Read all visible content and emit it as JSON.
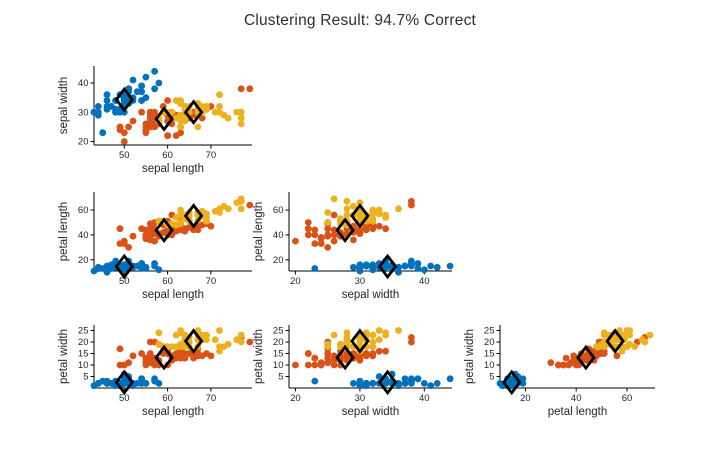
{
  "title": "Clustering Result: 94.7% Correct",
  "colors": {
    "cluster1": "#0072BD",
    "cluster2": "#D95319",
    "cluster3": "#EDB120",
    "centroid_edge": "#000000",
    "axis": "#000000",
    "text": "#262626",
    "background": "#ffffff"
  },
  "chart_data": {
    "type": "scatter",
    "title": "Clustering Result: 94.7% Correct",
    "features": [
      "sepal length",
      "sepal width",
      "petal length",
      "petal width"
    ],
    "legend": "none",
    "grid": false,
    "marker": {
      "point": "filled-circle",
      "centroid": "open-black-diamond"
    },
    "clusters": [
      {
        "name": "cluster-1-blue",
        "color": "#0072BD",
        "points": [
          [
            51,
            35,
            14,
            2
          ],
          [
            49,
            30,
            14,
            2
          ],
          [
            47,
            32,
            13,
            2
          ],
          [
            46,
            31,
            15,
            2
          ],
          [
            50,
            36,
            14,
            2
          ],
          [
            54,
            39,
            17,
            4
          ],
          [
            46,
            34,
            14,
            3
          ],
          [
            50,
            34,
            15,
            2
          ],
          [
            44,
            29,
            14,
            2
          ],
          [
            49,
            31,
            15,
            1
          ],
          [
            54,
            37,
            15,
            2
          ],
          [
            48,
            34,
            16,
            2
          ],
          [
            48,
            30,
            14,
            1
          ],
          [
            43,
            30,
            11,
            1
          ],
          [
            58,
            40,
            12,
            2
          ],
          [
            57,
            44,
            15,
            4
          ],
          [
            54,
            39,
            13,
            4
          ],
          [
            51,
            35,
            14,
            3
          ],
          [
            57,
            38,
            17,
            3
          ],
          [
            51,
            38,
            15,
            3
          ],
          [
            54,
            34,
            17,
            2
          ],
          [
            51,
            37,
            15,
            4
          ],
          [
            46,
            36,
            10,
            2
          ],
          [
            51,
            33,
            17,
            5
          ],
          [
            48,
            34,
            19,
            2
          ],
          [
            50,
            30,
            16,
            2
          ],
          [
            50,
            34,
            16,
            4
          ],
          [
            52,
            35,
            15,
            2
          ],
          [
            52,
            34,
            14,
            2
          ],
          [
            47,
            32,
            16,
            2
          ],
          [
            48,
            31,
            16,
            2
          ],
          [
            54,
            34,
            15,
            4
          ],
          [
            52,
            41,
            15,
            1
          ],
          [
            55,
            42,
            14,
            2
          ],
          [
            49,
            31,
            15,
            2
          ],
          [
            50,
            32,
            12,
            2
          ],
          [
            55,
            35,
            13,
            2
          ],
          [
            49,
            36,
            14,
            1
          ],
          [
            44,
            30,
            13,
            2
          ],
          [
            51,
            34,
            15,
            2
          ],
          [
            50,
            35,
            13,
            3
          ],
          [
            45,
            23,
            13,
            3
          ],
          [
            44,
            32,
            13,
            2
          ],
          [
            50,
            35,
            16,
            6
          ],
          [
            51,
            38,
            19,
            4
          ],
          [
            48,
            30,
            14,
            3
          ],
          [
            51,
            38,
            16,
            2
          ],
          [
            46,
            32,
            14,
            2
          ],
          [
            53,
            37,
            15,
            2
          ],
          [
            50,
            33,
            14,
            2
          ]
        ]
      },
      {
        "name": "cluster-2-orange",
        "color": "#D95319",
        "points": [
          [
            70,
            32,
            47,
            14
          ],
          [
            64,
            32,
            45,
            15
          ],
          [
            69,
            31,
            49,
            15
          ],
          [
            55,
            23,
            40,
            13
          ],
          [
            65,
            28,
            46,
            15
          ],
          [
            57,
            28,
            45,
            13
          ],
          [
            63,
            33,
            47,
            16
          ],
          [
            49,
            24,
            33,
            10
          ],
          [
            66,
            29,
            46,
            13
          ],
          [
            52,
            27,
            39,
            14
          ],
          [
            50,
            20,
            35,
            10
          ],
          [
            59,
            30,
            42,
            15
          ],
          [
            60,
            22,
            40,
            10
          ],
          [
            61,
            29,
            47,
            14
          ],
          [
            56,
            29,
            36,
            13
          ],
          [
            67,
            31,
            44,
            14
          ],
          [
            56,
            30,
            45,
            15
          ],
          [
            58,
            27,
            41,
            10
          ],
          [
            62,
            22,
            45,
            15
          ],
          [
            56,
            25,
            39,
            11
          ],
          [
            59,
            32,
            48,
            18
          ],
          [
            61,
            28,
            40,
            13
          ],
          [
            63,
            25,
            49,
            15
          ],
          [
            61,
            28,
            47,
            12
          ],
          [
            64,
            29,
            43,
            13
          ],
          [
            66,
            30,
            44,
            14
          ],
          [
            68,
            28,
            48,
            14
          ],
          [
            67,
            30,
            50,
            17
          ],
          [
            60,
            29,
            45,
            15
          ],
          [
            57,
            26,
            35,
            10
          ],
          [
            55,
            24,
            38,
            11
          ],
          [
            55,
            24,
            37,
            10
          ],
          [
            58,
            27,
            39,
            12
          ],
          [
            60,
            27,
            51,
            16
          ],
          [
            54,
            30,
            45,
            15
          ],
          [
            60,
            34,
            45,
            16
          ],
          [
            67,
            31,
            47,
            15
          ],
          [
            63,
            23,
            44,
            13
          ],
          [
            56,
            30,
            41,
            13
          ],
          [
            55,
            25,
            40,
            13
          ],
          [
            55,
            26,
            44,
            12
          ],
          [
            61,
            30,
            46,
            14
          ],
          [
            58,
            26,
            40,
            12
          ],
          [
            50,
            23,
            33,
            10
          ],
          [
            56,
            27,
            42,
            13
          ],
          [
            57,
            30,
            42,
            12
          ],
          [
            57,
            29,
            42,
            13
          ],
          [
            62,
            29,
            43,
            13
          ],
          [
            51,
            25,
            30,
            11
          ],
          [
            57,
            28,
            41,
            13
          ],
          [
            49,
            25,
            45,
            17
          ],
          [
            57,
            25,
            50,
            20
          ],
          [
            77,
            38,
            67,
            22
          ],
          [
            60,
            22,
            50,
            15
          ],
          [
            56,
            28,
            49,
            20
          ],
          [
            79,
            38,
            64,
            20
          ],
          [
            63,
            28,
            51,
            15
          ],
          [
            61,
            26,
            56,
            14
          ]
        ]
      },
      {
        "name": "cluster-3-yellow",
        "color": "#EDB120",
        "points": [
          [
            63,
            33,
            60,
            25
          ],
          [
            58,
            27,
            51,
            19
          ],
          [
            71,
            30,
            59,
            21
          ],
          [
            63,
            29,
            56,
            18
          ],
          [
            65,
            30,
            58,
            22
          ],
          [
            76,
            30,
            66,
            21
          ],
          [
            73,
            29,
            63,
            18
          ],
          [
            67,
            25,
            58,
            18
          ],
          [
            72,
            36,
            61,
            25
          ],
          [
            65,
            32,
            51,
            20
          ],
          [
            64,
            27,
            53,
            19
          ],
          [
            68,
            30,
            55,
            21
          ],
          [
            58,
            28,
            51,
            24
          ],
          [
            64,
            32,
            53,
            23
          ],
          [
            65,
            30,
            55,
            18
          ],
          [
            77,
            26,
            69,
            23
          ],
          [
            69,
            32,
            57,
            23
          ],
          [
            77,
            28,
            67,
            20
          ],
          [
            63,
            27,
            49,
            18
          ],
          [
            67,
            33,
            57,
            21
          ],
          [
            72,
            32,
            60,
            18
          ],
          [
            62,
            28,
            48,
            18
          ],
          [
            61,
            30,
            49,
            18
          ],
          [
            64,
            28,
            56,
            21
          ],
          [
            72,
            30,
            58,
            16
          ],
          [
            74,
            28,
            61,
            19
          ],
          [
            64,
            28,
            56,
            22
          ],
          [
            77,
            30,
            61,
            23
          ],
          [
            63,
            34,
            56,
            24
          ],
          [
            64,
            31,
            55,
            18
          ],
          [
            60,
            30,
            48,
            18
          ],
          [
            69,
            31,
            54,
            21
          ],
          [
            67,
            31,
            56,
            24
          ],
          [
            69,
            31,
            51,
            23
          ],
          [
            58,
            27,
            51,
            19
          ],
          [
            68,
            32,
            59,
            23
          ],
          [
            67,
            33,
            57,
            25
          ],
          [
            67,
            30,
            52,
            23
          ],
          [
            63,
            25,
            50,
            19
          ],
          [
            65,
            30,
            52,
            20
          ],
          [
            62,
            34,
            54,
            23
          ],
          [
            59,
            30,
            51,
            18
          ]
        ]
      }
    ],
    "centroids": [
      [
        50,
        34.3,
        14.6,
        2.5
      ],
      [
        59.2,
        27.7,
        43.8,
        13.2
      ],
      [
        66,
        30,
        55.3,
        20.4
      ]
    ],
    "panels": [
      {
        "xf": 0,
        "yf": 1,
        "xlabel": "sepal length",
        "ylabel": "sepal width",
        "xlim": [
          43,
          79.5
        ],
        "ylim": [
          18.8,
          45.8
        ],
        "xticks": [
          50,
          60,
          70
        ],
        "yticks": [
          20,
          30,
          40
        ]
      },
      {
        "xf": 0,
        "yf": 2,
        "xlabel": "sepal length",
        "ylabel": "petal length",
        "xlim": [
          43,
          79.5
        ],
        "ylim": [
          11,
          74.5
        ],
        "xticks": [
          50,
          60,
          70
        ],
        "yticks": [
          20,
          40,
          60
        ]
      },
      {
        "xf": 1,
        "yf": 2,
        "xlabel": "sepal width",
        "ylabel": "petal length",
        "xlim": [
          19,
          44.3
        ],
        "ylim": [
          11,
          74.5
        ],
        "xticks": [
          20,
          30,
          40
        ],
        "yticks": [
          20,
          40,
          60
        ]
      },
      {
        "xf": 0,
        "yf": 3,
        "xlabel": "sepal length",
        "ylabel": "petal width",
        "xlim": [
          43,
          79.5
        ],
        "ylim": [
          0,
          27.4
        ],
        "xticks": [
          50,
          60,
          70
        ],
        "yticks": [
          5,
          10,
          15,
          20,
          25
        ]
      },
      {
        "xf": 1,
        "yf": 3,
        "xlabel": "sepal width",
        "ylabel": "petal width",
        "xlim": [
          19,
          44.3
        ],
        "ylim": [
          0,
          27.4
        ],
        "xticks": [
          20,
          30,
          40
        ],
        "yticks": [
          5,
          10,
          15,
          20,
          25
        ]
      },
      {
        "xf": 2,
        "yf": 3,
        "xlabel": "petal length",
        "ylabel": "petal width",
        "xlim": [
          10,
          71
        ],
        "ylim": [
          0,
          27.4
        ],
        "xticks": [
          20,
          40,
          60
        ],
        "yticks": [
          5,
          10,
          15,
          20,
          25
        ]
      }
    ]
  }
}
